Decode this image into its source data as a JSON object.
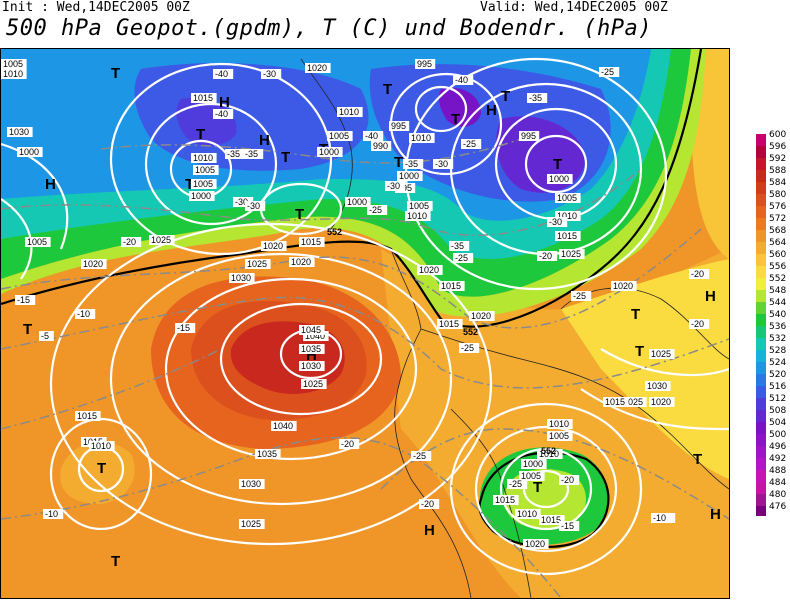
{
  "header": {
    "init": "Init : Wed,14DEC2005 00Z",
    "valid": "Valid: Wed,14DEC2005 00Z",
    "title": "500 hPa Geopot.(gpdm), T (C) und Bodendr. (hPa)"
  },
  "legend": {
    "values": [
      "600",
      "596",
      "592",
      "588",
      "584",
      "580",
      "576",
      "572",
      "568",
      "564",
      "560",
      "556",
      "552",
      "548",
      "544",
      "540",
      "536",
      "532",
      "528",
      "524",
      "520",
      "516",
      "512",
      "508",
      "504",
      "500",
      "496",
      "492",
      "488",
      "484",
      "480",
      "476"
    ],
    "colors": [
      "#c8006e",
      "#b4003c",
      "#c8142a",
      "#c8281e",
      "#d23c18",
      "#dc501e",
      "#e6641e",
      "#ee7a1e",
      "#f09628",
      "#f4ac30",
      "#f8c438",
      "#fadc40",
      "#f0f03c",
      "#b4e632",
      "#64d232",
      "#1ec83c",
      "#14c878",
      "#14c8b4",
      "#14b4dc",
      "#1e96e6",
      "#2878e6",
      "#3c5ae6",
      "#503cdc",
      "#6428d2",
      "#7814c8",
      "#8c14c8",
      "#a014c8",
      "#b414c8",
      "#c814b4",
      "#c814a0",
      "#a0148c",
      "#780078"
    ]
  },
  "map": {
    "pressure_highs": [
      "H",
      "H",
      "H",
      "H",
      "H",
      "H",
      "H",
      "H"
    ],
    "pressure_lows": [
      "T",
      "T",
      "T",
      "T",
      "T",
      "T",
      "T",
      "T",
      "T",
      "T",
      "T",
      "T",
      "T",
      "T",
      "T",
      "T",
      "T",
      "T"
    ],
    "isobar_labels": [
      "1005",
      "1010",
      "1015",
      "1020",
      "1025",
      "1030",
      "1035",
      "1040",
      "1045",
      "1040",
      "1035",
      "1030",
      "1025",
      "1020",
      "1015",
      "1010",
      "1005",
      "1000",
      "995",
      "990",
      "995",
      "1000",
      "1005",
      "1010",
      "1015",
      "1020",
      "1025",
      "1030",
      "1015",
      "1010",
      "1005",
      "1000",
      "995",
      "1005",
      "1010",
      "1015",
      "1020",
      "1025",
      "1020",
      "1015",
      "1010",
      "1000",
      "1005",
      "1010",
      "1015",
      "1020",
      "1025",
      "1030",
      "1020",
      "1015",
      "1010",
      "1005",
      "1000",
      "1005",
      "1020",
      "1025",
      "1030",
      "1015",
      "1010",
      "1000",
      "1005",
      "1000",
      "995",
      "1010",
      "1015",
      "1020",
      "1025"
    ],
    "temp_labels": [
      "-40",
      "-30",
      "-40",
      "-35",
      "-30",
      "-35",
      "-30",
      "-25",
      "-40",
      "-35",
      "-30",
      "-40",
      "-35",
      "-30",
      "-25",
      "-25",
      "-20",
      "-15",
      "-10",
      "-20",
      "-25",
      "-20",
      "-25",
      "-20",
      "-15",
      "-10",
      "-25",
      "-20",
      "-15",
      "-10",
      "-5",
      "-35",
      "-30",
      "-25",
      "-25",
      "-20",
      "-20",
      "-10"
    ],
    "geopot_labels": [
      "552",
      "552",
      "552"
    ]
  }
}
